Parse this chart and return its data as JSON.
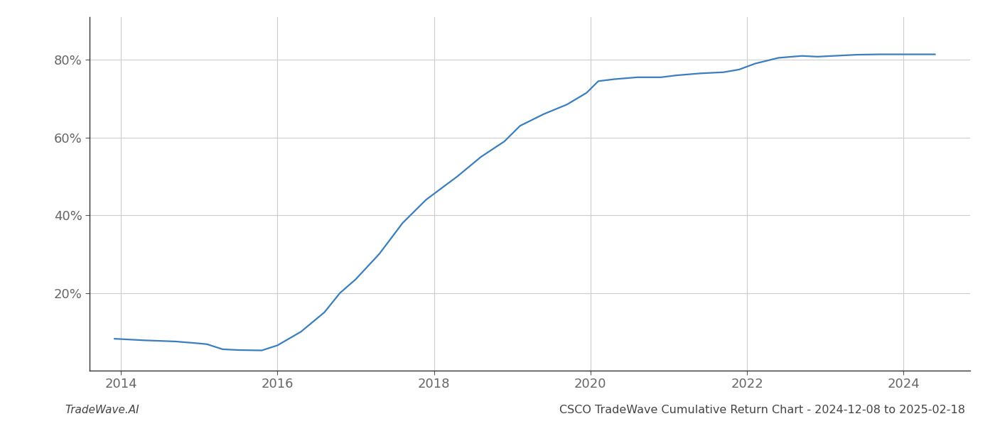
{
  "x_years": [
    2013.92,
    2014.3,
    2014.7,
    2015.0,
    2015.1,
    2015.3,
    2015.5,
    2015.8,
    2016.0,
    2016.3,
    2016.6,
    2016.8,
    2017.0,
    2017.3,
    2017.6,
    2017.9,
    2018.0,
    2018.3,
    2018.6,
    2018.9,
    2019.1,
    2019.4,
    2019.7,
    2019.95,
    2020.1,
    2020.3,
    2020.6,
    2020.9,
    2021.1,
    2021.4,
    2021.7,
    2021.9,
    2022.1,
    2022.4,
    2022.7,
    2022.9,
    2023.1,
    2023.4,
    2023.7,
    2023.9,
    2024.0,
    2024.2,
    2024.4
  ],
  "y_values": [
    8.2,
    7.8,
    7.5,
    7.0,
    6.8,
    5.5,
    5.3,
    5.2,
    6.5,
    10.0,
    15.0,
    20.0,
    23.5,
    30.0,
    38.0,
    44.0,
    45.5,
    50.0,
    55.0,
    59.0,
    63.0,
    66.0,
    68.5,
    71.5,
    74.5,
    75.0,
    75.5,
    75.5,
    76.0,
    76.5,
    76.8,
    77.5,
    79.0,
    80.5,
    81.0,
    80.8,
    81.0,
    81.3,
    81.4,
    81.4,
    81.4,
    81.4,
    81.4
  ],
  "line_color": "#3a7ebf",
  "line_width": 1.6,
  "background_color": "#ffffff",
  "grid_color": "#cccccc",
  "title": "CSCO TradeWave Cumulative Return Chart - 2024-12-08 to 2025-02-18",
  "footer_left": "TradeWave.AI",
  "xlim": [
    2013.6,
    2024.85
  ],
  "ylim": [
    0,
    91
  ],
  "yticks": [
    20,
    40,
    60,
    80
  ],
  "xticks": [
    2014,
    2016,
    2018,
    2020,
    2022,
    2024
  ],
  "tick_fontsize": 13,
  "title_fontsize": 11.5,
  "footer_fontsize": 11
}
